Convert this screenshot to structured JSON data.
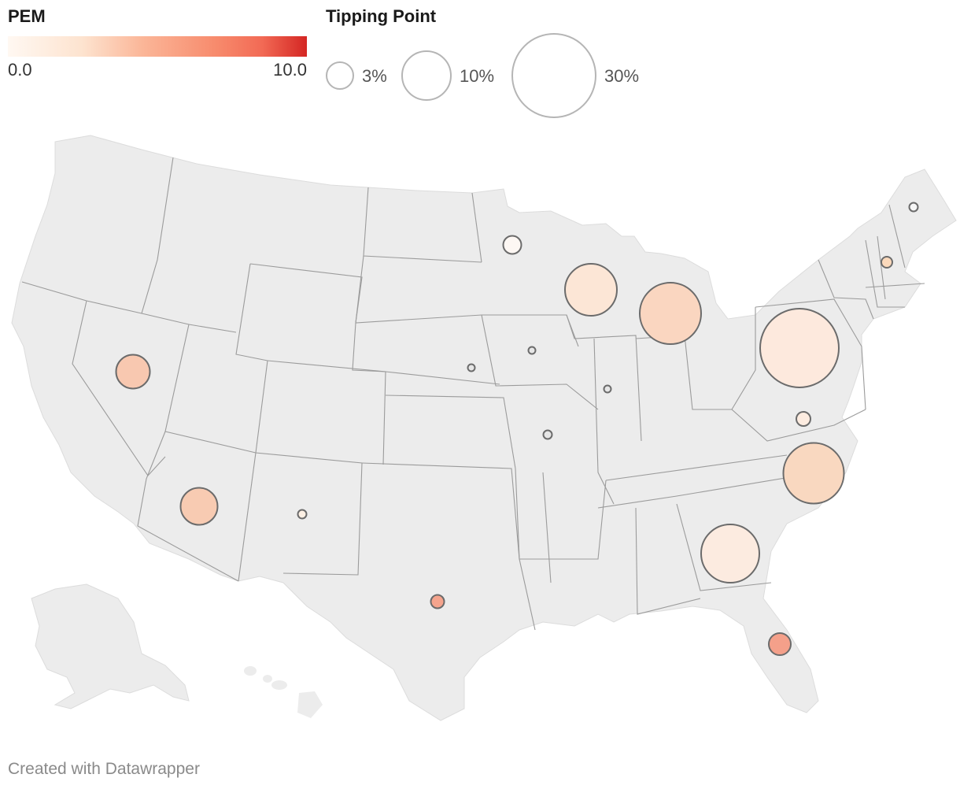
{
  "legend_color": {
    "title": "PEM",
    "min_label": "0.0",
    "max_label": "10.0"
  },
  "legend_size": {
    "title": "Tipping Point",
    "items": [
      {
        "label": "3%"
      },
      {
        "label": "10%"
      },
      {
        "label": "30%"
      }
    ]
  },
  "colors": {
    "land": "#ececec",
    "state_border": "#9a9a9a",
    "bubble_stroke": "#6b6b6b"
  },
  "markers": [
    {
      "state": "Maine",
      "color": "#f7f7f7"
    },
    {
      "state": "New Hampshire",
      "color": "#fbd9bb"
    },
    {
      "state": "Minnesota",
      "color": "#fdf7f3"
    },
    {
      "state": "Wisconsin",
      "color": "#fce6d6"
    },
    {
      "state": "Michigan",
      "color": "#fad6c0"
    },
    {
      "state": "Pennsylvania",
      "color": "#fde9dd"
    },
    {
      "state": "Iowa",
      "color": "#e6e6e6"
    },
    {
      "state": "Nebraska",
      "color": "#e6e6e6"
    },
    {
      "state": "Illinois",
      "color": "#e6e6e6"
    },
    {
      "state": "Missouri",
      "color": "#e6e6e6"
    },
    {
      "state": "Virginia",
      "color": "#fdece0"
    },
    {
      "state": "North Carolina",
      "color": "#f9d8c0"
    },
    {
      "state": "Georgia",
      "color": "#fcebe0"
    },
    {
      "state": "Florida",
      "color": "#f4a08a"
    },
    {
      "state": "Texas",
      "color": "#f5a48d"
    },
    {
      "state": "Nevada",
      "color": "#f8c8b0"
    },
    {
      "state": "Arizona",
      "color": "#f8cbb2"
    },
    {
      "state": "New Mexico",
      "color": "#fdf0e4"
    }
  ],
  "footer": {
    "credit": "Created with Datawrapper"
  }
}
